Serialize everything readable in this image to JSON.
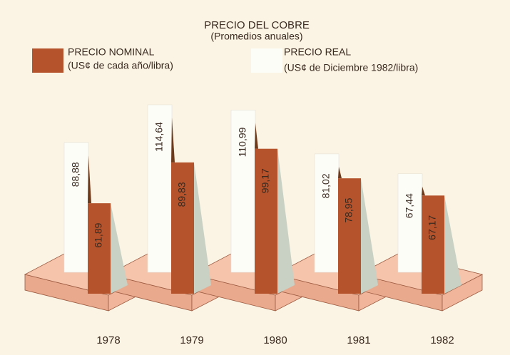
{
  "chart_data": {
    "type": "bar3d",
    "title": "PRECIO DEL COBRE",
    "subtitle": "(Promedios anuales)",
    "categories": [
      "1978",
      "1979",
      "1980",
      "1981",
      "1982"
    ],
    "series": [
      {
        "name": "PRECIO NOMINAL",
        "note": "(US¢ de cada año/libra)",
        "color": "#b4532c",
        "values": [
          61.89,
          89.83,
          99.17,
          78.95,
          67.17
        ],
        "value_labels": [
          "61,89",
          "89,83",
          "99,17",
          "78,95",
          "67,17"
        ]
      },
      {
        "name": "PRECIO REAL",
        "note": "(US¢ de Diciembre 1982/libra)",
        "color": "#fdfdf8",
        "values": [
          88.88,
          114.64,
          110.99,
          81.02,
          67.44
        ],
        "value_labels": [
          "88,88",
          "114,64",
          "110,99",
          "81,02",
          "67,44"
        ]
      }
    ]
  }
}
